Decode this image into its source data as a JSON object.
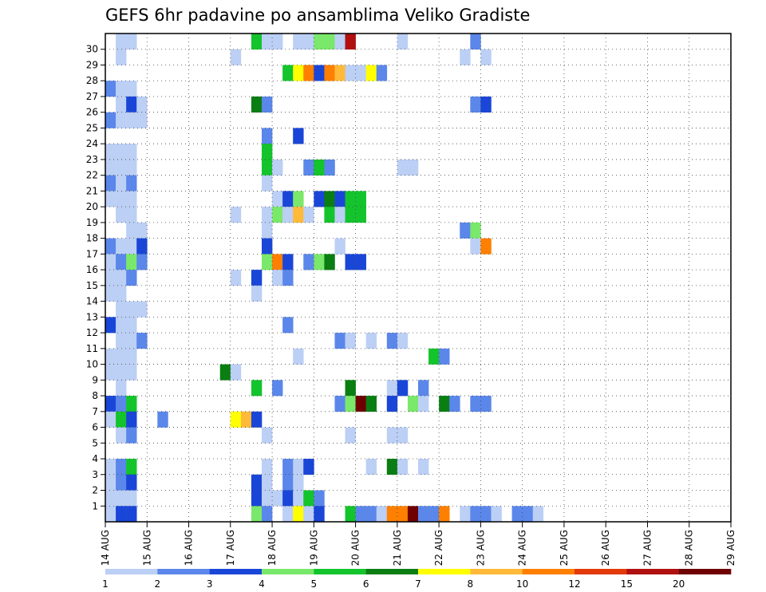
{
  "chart_data": {
    "type": "heatmap",
    "title": "GEFS 6hr padavine po ansamblima Veliko Gradiste",
    "xlabel": "",
    "ylabel": "",
    "x_ticks": [
      "14 AUG",
      "15 AUG",
      "16 AUG",
      "17 AUG",
      "18 AUG",
      "19 AUG",
      "20 AUG",
      "21 AUG",
      "22 AUG",
      "23 AUG",
      "24 AUG",
      "25 AUG",
      "26 AUG",
      "27 AUG",
      "28 AUG",
      "29 AUG"
    ],
    "y_ticks": [
      "1",
      "2",
      "3",
      "4",
      "5",
      "6",
      "7",
      "8",
      "9",
      "10",
      "11",
      "12",
      "13",
      "14",
      "15",
      "16",
      "17",
      "18",
      "19",
      "20",
      "21",
      "22",
      "23",
      "24",
      "25",
      "26",
      "27",
      "28",
      "29",
      "30"
    ],
    "time_steps_per_day": 4,
    "grid": "dotted",
    "colorbar": {
      "labels": [
        "1",
        "2",
        "3",
        "4",
        "5",
        "6",
        "7",
        "8",
        "10",
        "12",
        "15",
        "20"
      ],
      "colors": [
        "#bccff5",
        "#5b87ea",
        "#1a46d8",
        "#7ae86a",
        "#13c42c",
        "#0a7e12",
        "#ffff00",
        "#ffba3a",
        "#ff7f00",
        "#e23a0a",
        "#b01010",
        "#6e0000"
      ]
    },
    "cell_value_note": "class index 1-12 maps to colorbar.colors",
    "cells": [
      [
        30,
        1,
        1
      ],
      [
        30,
        2,
        1
      ],
      [
        30,
        14,
        5
      ],
      [
        30,
        15,
        1
      ],
      [
        30,
        16,
        1
      ],
      [
        30,
        18,
        1
      ],
      [
        30,
        19,
        1
      ],
      [
        30,
        20,
        4
      ],
      [
        30,
        21,
        4
      ],
      [
        30,
        22,
        1
      ],
      [
        30,
        23,
        11
      ],
      [
        30,
        28,
        1
      ],
      [
        30,
        35,
        2
      ],
      [
        29,
        1,
        1
      ],
      [
        29,
        12,
        1
      ],
      [
        29,
        34,
        1
      ],
      [
        29,
        36,
        1
      ],
      [
        28,
        17,
        5
      ],
      [
        28,
        18,
        7
      ],
      [
        28,
        19,
        9
      ],
      [
        28,
        20,
        3
      ],
      [
        28,
        21,
        9
      ],
      [
        28,
        22,
        8
      ],
      [
        28,
        23,
        1
      ],
      [
        28,
        24,
        1
      ],
      [
        28,
        25,
        7
      ],
      [
        28,
        26,
        2
      ],
      [
        27,
        0,
        2
      ],
      [
        27,
        1,
        1
      ],
      [
        27,
        2,
        1
      ],
      [
        26,
        1,
        1
      ],
      [
        26,
        2,
        3
      ],
      [
        26,
        3,
        1
      ],
      [
        26,
        14,
        6
      ],
      [
        26,
        15,
        2
      ],
      [
        26,
        35,
        2
      ],
      [
        26,
        36,
        3
      ],
      [
        25,
        0,
        2
      ],
      [
        25,
        1,
        1
      ],
      [
        25,
        2,
        1
      ],
      [
        25,
        3,
        1
      ],
      [
        24,
        15,
        2
      ],
      [
        24,
        18,
        3
      ],
      [
        23,
        0,
        1
      ],
      [
        23,
        1,
        1
      ],
      [
        23,
        2,
        1
      ],
      [
        23,
        15,
        5
      ],
      [
        22,
        0,
        1
      ],
      [
        22,
        1,
        1
      ],
      [
        22,
        2,
        1
      ],
      [
        22,
        15,
        5
      ],
      [
        22,
        16,
        1
      ],
      [
        22,
        19,
        2
      ],
      [
        22,
        20,
        5
      ],
      [
        22,
        21,
        2
      ],
      [
        22,
        28,
        1
      ],
      [
        22,
        29,
        1
      ],
      [
        21,
        0,
        2
      ],
      [
        21,
        1,
        1
      ],
      [
        21,
        2,
        2
      ],
      [
        21,
        15,
        1
      ],
      [
        20,
        0,
        1
      ],
      [
        20,
        1,
        1
      ],
      [
        20,
        2,
        1
      ],
      [
        20,
        16,
        1
      ],
      [
        20,
        17,
        3
      ],
      [
        20,
        18,
        4
      ],
      [
        20,
        20,
        3
      ],
      [
        20,
        21,
        6
      ],
      [
        20,
        22,
        3
      ],
      [
        20,
        23,
        5
      ],
      [
        20,
        24,
        5
      ],
      [
        19,
        1,
        1
      ],
      [
        19,
        2,
        1
      ],
      [
        19,
        12,
        1
      ],
      [
        19,
        15,
        1
      ],
      [
        19,
        16,
        4
      ],
      [
        19,
        17,
        1
      ],
      [
        19,
        18,
        8
      ],
      [
        19,
        19,
        1
      ],
      [
        19,
        21,
        5
      ],
      [
        19,
        22,
        1
      ],
      [
        19,
        23,
        5
      ],
      [
        19,
        24,
        5
      ],
      [
        18,
        2,
        1
      ],
      [
        18,
        3,
        1
      ],
      [
        18,
        15,
        1
      ],
      [
        18,
        34,
        2
      ],
      [
        18,
        35,
        4
      ],
      [
        17,
        0,
        2
      ],
      [
        17,
        1,
        1
      ],
      [
        17,
        2,
        1
      ],
      [
        17,
        3,
        3
      ],
      [
        17,
        15,
        3
      ],
      [
        17,
        22,
        1
      ],
      [
        17,
        35,
        1
      ],
      [
        17,
        36,
        9
      ],
      [
        16,
        0,
        1
      ],
      [
        16,
        1,
        2
      ],
      [
        16,
        2,
        4
      ],
      [
        16,
        3,
        2
      ],
      [
        16,
        15,
        4
      ],
      [
        16,
        16,
        9
      ],
      [
        16,
        17,
        3
      ],
      [
        16,
        19,
        2
      ],
      [
        16,
        20,
        4
      ],
      [
        16,
        21,
        6
      ],
      [
        16,
        23,
        3
      ],
      [
        16,
        24,
        3
      ],
      [
        15,
        0,
        1
      ],
      [
        15,
        1,
        1
      ],
      [
        15,
        2,
        2
      ],
      [
        15,
        12,
        1
      ],
      [
        15,
        14,
        3
      ],
      [
        15,
        16,
        1
      ],
      [
        15,
        17,
        2
      ],
      [
        14,
        0,
        1
      ],
      [
        14,
        1,
        1
      ],
      [
        14,
        14,
        1
      ],
      [
        13,
        1,
        1
      ],
      [
        13,
        2,
        1
      ],
      [
        13,
        3,
        1
      ],
      [
        12,
        0,
        3
      ],
      [
        12,
        1,
        1
      ],
      [
        12,
        2,
        1
      ],
      [
        12,
        17,
        2
      ],
      [
        11,
        1,
        1
      ],
      [
        11,
        2,
        1
      ],
      [
        11,
        3,
        2
      ],
      [
        11,
        22,
        2
      ],
      [
        11,
        23,
        1
      ],
      [
        11,
        25,
        1
      ],
      [
        11,
        27,
        2
      ],
      [
        11,
        28,
        1
      ],
      [
        10,
        0,
        1
      ],
      [
        10,
        1,
        1
      ],
      [
        10,
        2,
        1
      ],
      [
        10,
        18,
        1
      ],
      [
        10,
        31,
        5
      ],
      [
        10,
        32,
        2
      ],
      [
        9,
        0,
        1
      ],
      [
        9,
        1,
        1
      ],
      [
        9,
        2,
        1
      ],
      [
        9,
        11,
        6
      ],
      [
        9,
        12,
        1
      ],
      [
        8,
        1,
        1
      ],
      [
        8,
        14,
        5
      ],
      [
        8,
        16,
        2
      ],
      [
        8,
        23,
        6
      ],
      [
        8,
        27,
        1
      ],
      [
        8,
        28,
        3
      ],
      [
        8,
        30,
        2
      ],
      [
        7,
        0,
        3
      ],
      [
        7,
        1,
        2
      ],
      [
        7,
        2,
        5
      ],
      [
        7,
        22,
        2
      ],
      [
        7,
        23,
        4
      ],
      [
        7,
        24,
        12
      ],
      [
        7,
        25,
        6
      ],
      [
        7,
        27,
        3
      ],
      [
        7,
        29,
        4
      ],
      [
        7,
        30,
        1
      ],
      [
        7,
        32,
        6
      ],
      [
        7,
        33,
        2
      ],
      [
        7,
        35,
        2
      ],
      [
        7,
        36,
        2
      ],
      [
        6,
        0,
        1
      ],
      [
        6,
        1,
        5
      ],
      [
        6,
        2,
        3
      ],
      [
        6,
        5,
        2
      ],
      [
        6,
        12,
        7
      ],
      [
        6,
        13,
        8
      ],
      [
        6,
        14,
        3
      ],
      [
        5,
        1,
        1
      ],
      [
        5,
        2,
        2
      ],
      [
        5,
        15,
        1
      ],
      [
        5,
        23,
        1
      ],
      [
        5,
        27,
        1
      ],
      [
        5,
        28,
        1
      ],
      [
        3,
        0,
        1
      ],
      [
        3,
        1,
        2
      ],
      [
        3,
        2,
        5
      ],
      [
        3,
        15,
        1
      ],
      [
        3,
        17,
        2
      ],
      [
        3,
        18,
        1
      ],
      [
        3,
        19,
        3
      ],
      [
        3,
        25,
        1
      ],
      [
        3,
        27,
        6
      ],
      [
        3,
        28,
        1
      ],
      [
        3,
        30,
        1
      ],
      [
        2,
        0,
        1
      ],
      [
        2,
        1,
        2
      ],
      [
        2,
        2,
        3
      ],
      [
        2,
        14,
        3
      ],
      [
        2,
        15,
        1
      ],
      [
        2,
        17,
        2
      ],
      [
        2,
        18,
        1
      ],
      [
        1,
        0,
        1
      ],
      [
        1,
        1,
        1
      ],
      [
        1,
        2,
        1
      ],
      [
        1,
        14,
        3
      ],
      [
        1,
        15,
        1
      ],
      [
        1,
        16,
        1
      ],
      [
        1,
        17,
        3
      ],
      [
        1,
        18,
        1
      ],
      [
        1,
        19,
        5
      ],
      [
        1,
        20,
        2
      ],
      [
        0,
        0,
        1
      ],
      [
        0,
        1,
        3
      ],
      [
        0,
        2,
        3
      ],
      [
        0,
        14,
        4
      ],
      [
        0,
        15,
        2
      ],
      [
        0,
        17,
        1
      ],
      [
        0,
        18,
        7
      ],
      [
        0,
        19,
        1
      ],
      [
        0,
        20,
        3
      ],
      [
        0,
        23,
        5
      ],
      [
        0,
        24,
        2
      ],
      [
        0,
        25,
        2
      ],
      [
        0,
        26,
        1
      ],
      [
        0,
        27,
        9
      ],
      [
        0,
        28,
        9
      ],
      [
        0,
        29,
        12
      ],
      [
        0,
        30,
        2
      ],
      [
        0,
        31,
        2
      ],
      [
        0,
        32,
        9
      ],
      [
        0,
        34,
        1
      ],
      [
        0,
        35,
        2
      ],
      [
        0,
        36,
        2
      ],
      [
        0,
        37,
        1
      ],
      [
        0,
        39,
        2
      ],
      [
        0,
        40,
        2
      ],
      [
        0,
        41,
        1
      ]
    ]
  }
}
